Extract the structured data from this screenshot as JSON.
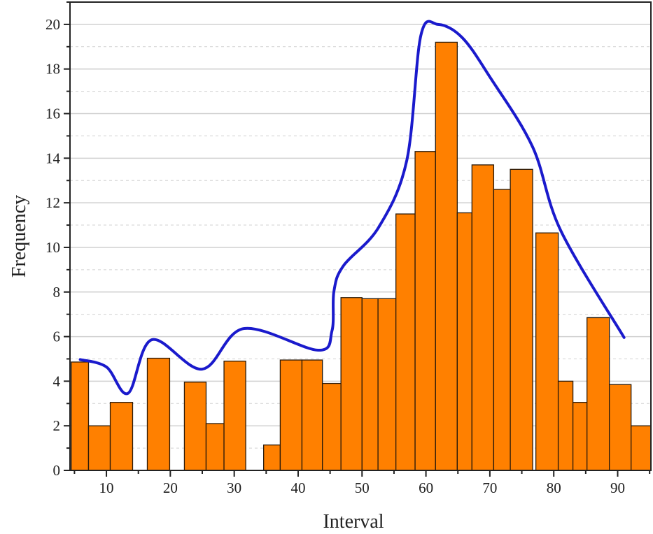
{
  "chart_data": {
    "type": "bar",
    "title": "",
    "xlabel": "Interval",
    "ylabel": "Frequency",
    "xlim": [
      4.3,
      95.2
    ],
    "ylim": [
      0,
      21
    ],
    "xticks": [
      10,
      20,
      30,
      40,
      50,
      60,
      70,
      80,
      90
    ],
    "yticks": [
      0,
      2,
      4,
      6,
      8,
      10,
      12,
      14,
      16,
      18,
      20
    ],
    "grid": true,
    "colors": {
      "bar": "#ff8000",
      "bar_edge": "#2a1a0a",
      "curve": "#1a1acc",
      "grid": "#d0d0d0"
    },
    "bins": [
      {
        "start": 4.5,
        "end": 7.2,
        "value": 4.86
      },
      {
        "start": 7.2,
        "end": 10.6,
        "value": 2.0
      },
      {
        "start": 10.6,
        "end": 14.1,
        "value": 3.05
      },
      {
        "start": 16.4,
        "end": 19.9,
        "value": 5.03
      },
      {
        "start": 22.2,
        "end": 25.6,
        "value": 3.96
      },
      {
        "start": 25.6,
        "end": 28.4,
        "value": 2.1
      },
      {
        "start": 28.4,
        "end": 31.8,
        "value": 4.9
      },
      {
        "start": 34.6,
        "end": 37.2,
        "value": 1.14
      },
      {
        "start": 37.2,
        "end": 40.6,
        "value": 4.95
      },
      {
        "start": 40.6,
        "end": 43.8,
        "value": 4.95
      },
      {
        "start": 43.8,
        "end": 46.7,
        "value": 3.9
      },
      {
        "start": 46.7,
        "end": 50.0,
        "value": 7.75
      },
      {
        "start": 50.0,
        "end": 52.5,
        "value": 7.7
      },
      {
        "start": 52.5,
        "end": 55.3,
        "value": 7.7
      },
      {
        "start": 55.3,
        "end": 58.3,
        "value": 11.5
      },
      {
        "start": 58.3,
        "end": 61.5,
        "value": 14.3
      },
      {
        "start": 61.5,
        "end": 64.9,
        "value": 19.2
      },
      {
        "start": 64.9,
        "end": 67.2,
        "value": 11.55
      },
      {
        "start": 67.2,
        "end": 70.6,
        "value": 13.7
      },
      {
        "start": 70.6,
        "end": 73.2,
        "value": 12.6
      },
      {
        "start": 73.2,
        "end": 76.7,
        "value": 13.5
      },
      {
        "start": 77.2,
        "end": 80.7,
        "value": 10.65
      },
      {
        "start": 80.7,
        "end": 83.0,
        "value": 4.0
      },
      {
        "start": 83.0,
        "end": 85.2,
        "value": 3.05
      },
      {
        "start": 85.2,
        "end": 88.7,
        "value": 6.85
      },
      {
        "start": 88.7,
        "end": 92.1,
        "value": 3.85
      },
      {
        "start": 92.1,
        "end": 95.2,
        "value": 2.0
      }
    ],
    "curve": [
      [
        5.9,
        4.97
      ],
      [
        10.0,
        4.64
      ],
      [
        13.4,
        3.46
      ],
      [
        17.1,
        5.86
      ],
      [
        25.0,
        4.54
      ],
      [
        31.5,
        6.36
      ],
      [
        43.1,
        5.39
      ],
      [
        45.3,
        6.26
      ],
      [
        45.6,
        8.03
      ],
      [
        47.1,
        9.18
      ],
      [
        52.6,
        10.9
      ],
      [
        57.0,
        13.9
      ],
      [
        59.2,
        19.5
      ],
      [
        61.9,
        20.0
      ],
      [
        65.7,
        19.4
      ],
      [
        70.1,
        17.6
      ],
      [
        76.7,
        14.5
      ],
      [
        81.1,
        10.75
      ],
      [
        91.0,
        5.96
      ]
    ]
  }
}
